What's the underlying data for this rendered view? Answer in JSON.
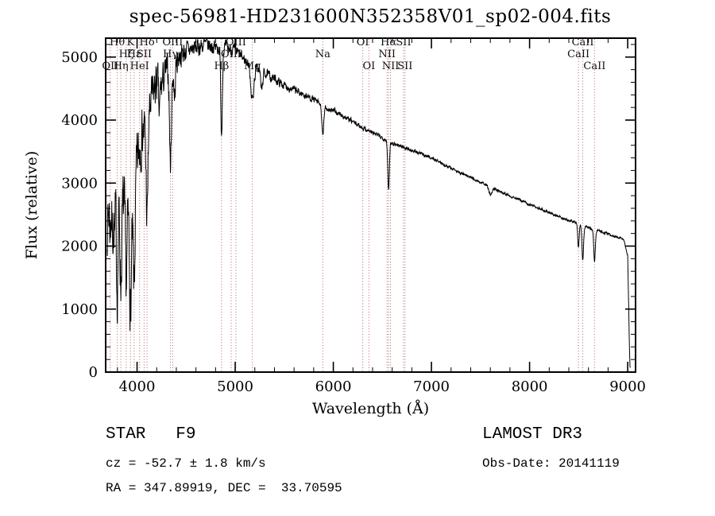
{
  "chart_data": {
    "type": "line",
    "title": "spec-56981-HD231600N352358V01_sp02-004.fits",
    "xlabel": "Wavelength (Å)",
    "ylabel": "Flux (relative)",
    "xlim": [
      3680,
      9080
    ],
    "ylim": [
      0,
      5300
    ],
    "xticks": [
      4000,
      5000,
      6000,
      7000,
      8000,
      9000
    ],
    "yticks": [
      0,
      1000,
      2000,
      3000,
      4000,
      5000
    ],
    "x_minor_step": 200,
    "y_minor_step": 200,
    "grid": false,
    "legend": "none",
    "series_color": "#000000",
    "marker_line_color": "#b25b5b",
    "label_rows_y": [
      57,
      72,
      87
    ],
    "continuum": [
      [
        3695,
        2350
      ],
      [
        3720,
        2650
      ],
      [
        3760,
        2750
      ],
      [
        3800,
        2600
      ],
      [
        3840,
        2700
      ],
      [
        3880,
        2550
      ],
      [
        3920,
        2400
      ],
      [
        3960,
        2500
      ],
      [
        4000,
        3300
      ],
      [
        4050,
        3800
      ],
      [
        4100,
        3900
      ],
      [
        4150,
        4350
      ],
      [
        4200,
        4600
      ],
      [
        4250,
        4550
      ],
      [
        4300,
        4800
      ],
      [
        4360,
        4700
      ],
      [
        4420,
        5000
      ],
      [
        4500,
        5100
      ],
      [
        4600,
        5150
      ],
      [
        4700,
        5200
      ],
      [
        4800,
        5150
      ],
      [
        4900,
        5150
      ],
      [
        5000,
        5100
      ],
      [
        5100,
        4950
      ],
      [
        5200,
        4850
      ],
      [
        5300,
        4750
      ],
      [
        5400,
        4650
      ],
      [
        5500,
        4550
      ],
      [
        5600,
        4480
      ],
      [
        5700,
        4400
      ],
      [
        5800,
        4330
      ],
      [
        5900,
        4200
      ],
      [
        6000,
        4150
      ],
      [
        6100,
        4060
      ],
      [
        6200,
        3970
      ],
      [
        6300,
        3880
      ],
      [
        6400,
        3800
      ],
      [
        6500,
        3720
      ],
      [
        6600,
        3640
      ],
      [
        6700,
        3580
      ],
      [
        6800,
        3520
      ],
      [
        6900,
        3460
      ],
      [
        7000,
        3400
      ],
      [
        7100,
        3320
      ],
      [
        7200,
        3240
      ],
      [
        7300,
        3160
      ],
      [
        7400,
        3090
      ],
      [
        7500,
        3010
      ],
      [
        7600,
        2940
      ],
      [
        7700,
        2870
      ],
      [
        7800,
        2800
      ],
      [
        7900,
        2730
      ],
      [
        8000,
        2660
      ],
      [
        8100,
        2600
      ],
      [
        8200,
        2530
      ],
      [
        8300,
        2470
      ],
      [
        8400,
        2410
      ],
      [
        8500,
        2350
      ],
      [
        8600,
        2290
      ],
      [
        8700,
        2240
      ],
      [
        8800,
        2190
      ],
      [
        8900,
        2140
      ],
      [
        8960,
        2100
      ],
      [
        9000,
        1850
      ],
      [
        9008,
        1200
      ],
      [
        9016,
        500
      ],
      [
        9022,
        120
      ],
      [
        9026,
        40
      ]
    ],
    "noise_profile": [
      [
        3695,
        480
      ],
      [
        3900,
        520
      ],
      [
        4050,
        430
      ],
      [
        4200,
        300
      ],
      [
        4350,
        230
      ],
      [
        4500,
        160
      ],
      [
        4700,
        130
      ],
      [
        4900,
        110
      ],
      [
        5100,
        90
      ],
      [
        5400,
        70
      ],
      [
        5700,
        55
      ],
      [
        6000,
        45
      ],
      [
        6400,
        35
      ],
      [
        6800,
        28
      ],
      [
        7200,
        24
      ],
      [
        7800,
        20
      ],
      [
        8400,
        20
      ],
      [
        8800,
        22
      ],
      [
        9026,
        15
      ]
    ],
    "absorption_lines": [
      [
        3727,
        350,
        6
      ],
      [
        3750,
        500,
        7
      ],
      [
        3770,
        600,
        6
      ],
      [
        3798,
        1300,
        8
      ],
      [
        3835,
        1250,
        8
      ],
      [
        3889,
        1100,
        8
      ],
      [
        3934,
        1450,
        9
      ],
      [
        3970,
        1350,
        9
      ],
      [
        4102,
        1500,
        9
      ],
      [
        4227,
        500,
        6
      ],
      [
        4340,
        1450,
        9
      ],
      [
        4383,
        500,
        6
      ],
      [
        4861,
        1350,
        8
      ],
      [
        5175,
        550,
        16
      ],
      [
        5270,
        300,
        10
      ],
      [
        5893,
        480,
        9
      ],
      [
        6563,
        780,
        8
      ],
      [
        7600,
        120,
        15
      ],
      [
        8498,
        360,
        7
      ],
      [
        8542,
        560,
        8
      ],
      [
        8662,
        500,
        8
      ]
    ],
    "line_markers": [
      {
        "label": "Hθ",
        "wl": 3798,
        "row": 0
      },
      {
        "label": "K",
        "wl": 3934,
        "row": 0
      },
      {
        "label": "Hδ",
        "wl": 4102,
        "row": 0
      },
      {
        "label": "OIII",
        "wl": 4363,
        "row": 0
      },
      {
        "label": "OIII",
        "wl": 5007,
        "row": 0
      },
      {
        "label": "OI",
        "wl": 6300,
        "row": 0
      },
      {
        "label": "Hα",
        "wl": 6563,
        "row": 0
      },
      {
        "label": "SII",
        "wl": 6716,
        "row": 0
      },
      {
        "label": "CaII",
        "wl": 8542,
        "row": 0
      },
      {
        "label": "Hζ",
        "wl": 3889,
        "row": 1
      },
      {
        "label": "Hε",
        "wl": 3970,
        "row": 1
      },
      {
        "label": "SII",
        "wl": 4072,
        "row": 1
      },
      {
        "label": "Hγ",
        "wl": 4340,
        "row": 1
      },
      {
        "label": "OIII",
        "wl": 4959,
        "row": 1
      },
      {
        "label": "Na",
        "wl": 5893,
        "row": 1
      },
      {
        "label": "NII",
        "wl": 6548,
        "row": 1
      },
      {
        "label": "CaII",
        "wl": 8498,
        "row": 1
      },
      {
        "label": "OII",
        "wl": 3727,
        "row": 2
      },
      {
        "label": "Hη",
        "wl": 3835,
        "row": 2
      },
      {
        "label": "HeI",
        "wl": 4026,
        "row": 2
      },
      {
        "label": "Hβ",
        "wl": 4861,
        "row": 2
      },
      {
        "label": "Mg",
        "wl": 5175,
        "row": 2
      },
      {
        "label": "OI",
        "wl": 6363,
        "row": 2
      },
      {
        "label": "NII",
        "wl": 6583,
        "row": 2
      },
      {
        "label": "SII",
        "wl": 6731,
        "row": 2
      },
      {
        "label": "CaII",
        "wl": 8662,
        "row": 2
      }
    ]
  },
  "footer": {
    "class_line": "STAR   F9",
    "survey": "LAMOST DR3",
    "cz_line": "cz = -52.7 ± 1.8 km/s",
    "obs_line": "Obs-Date: 20141119",
    "coord_line": "RA = 347.89919, DEC =  33.70595"
  }
}
